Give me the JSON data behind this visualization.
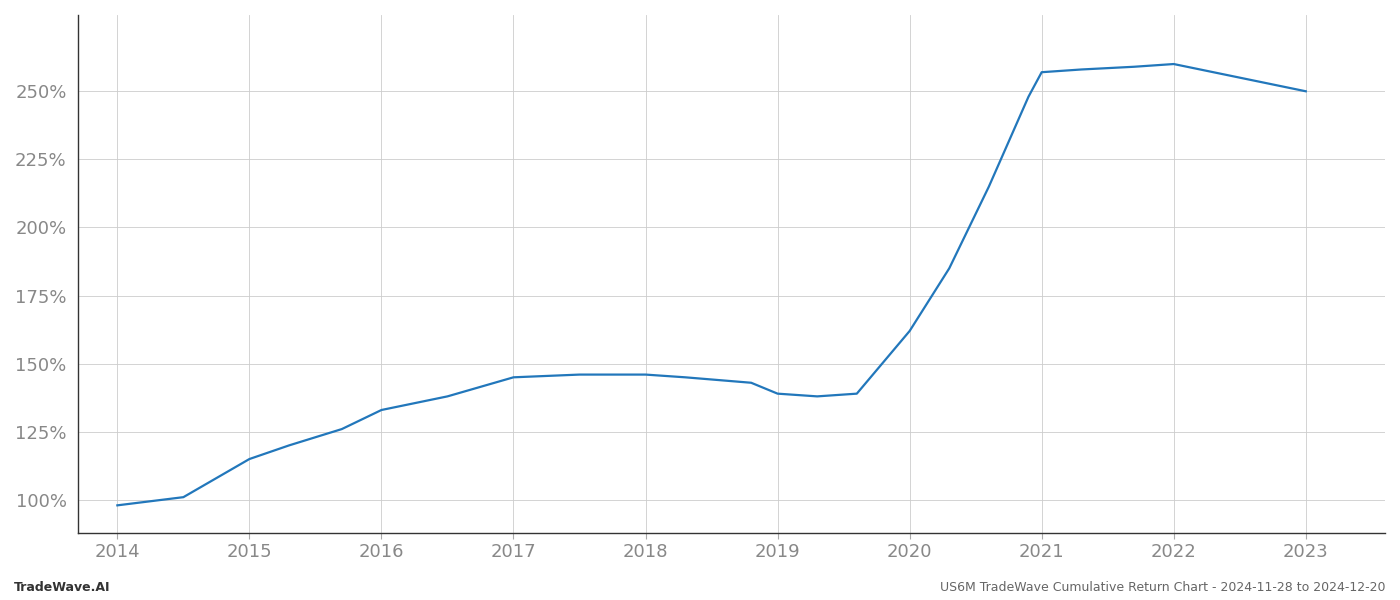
{
  "x": [
    2014,
    2014.5,
    2015,
    2015.3,
    2015.7,
    2016,
    2016.5,
    2017,
    2017.5,
    2018,
    2018.3,
    2018.8,
    2019,
    2019.3,
    2019.6,
    2020,
    2020.3,
    2020.6,
    2020.9,
    2021,
    2021.3,
    2021.7,
    2022,
    2022.5,
    2023
  ],
  "y": [
    98,
    101,
    115,
    120,
    126,
    133,
    138,
    145,
    146,
    146,
    145,
    143,
    139,
    138,
    139,
    162,
    185,
    215,
    248,
    257,
    258,
    259,
    260,
    255,
    250
  ],
  "line_color": "#2277bb",
  "line_width": 1.6,
  "ylim": [
    88,
    278
  ],
  "xlim": [
    2013.7,
    2023.6
  ],
  "yticks": [
    100,
    125,
    150,
    175,
    200,
    225,
    250
  ],
  "xticks": [
    2014,
    2015,
    2016,
    2017,
    2018,
    2019,
    2020,
    2021,
    2022,
    2023
  ],
  "grid_color": "#cccccc",
  "background_color": "#ffffff",
  "footer_left": "TradeWave.AI",
  "footer_right": "US6M TradeWave Cumulative Return Chart - 2024-11-28 to 2024-12-20",
  "footer_fontsize": 9,
  "tick_label_fontsize": 13,
  "tick_label_color": "#888888"
}
